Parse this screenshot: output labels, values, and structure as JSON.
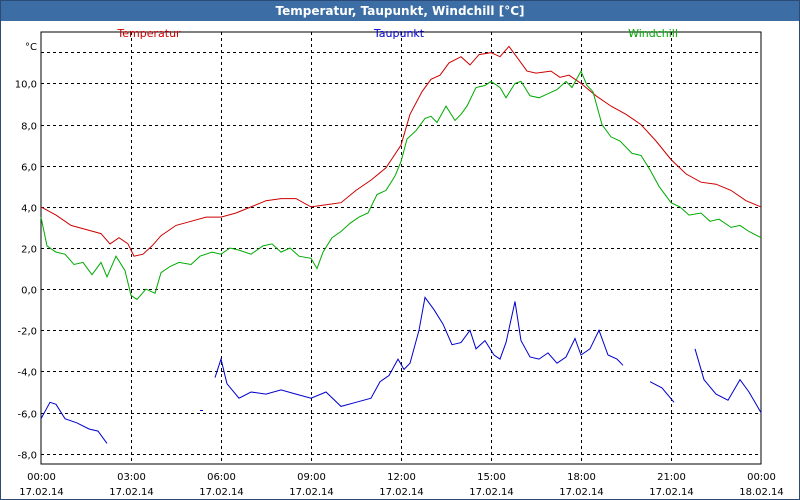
{
  "window": {
    "title": "Temperatur, Taupunkt, Windchill [°C]"
  },
  "chart_data": {
    "type": "line",
    "title": "Temperatur, Taupunkt, Windchill [°C]",
    "ylabel": "°C",
    "xlabel": "",
    "xlim": [
      0,
      24
    ],
    "ylim": [
      -8.5,
      12.5
    ],
    "grid": true,
    "legend_position": "top",
    "x_ticks": [
      {
        "t": 0,
        "time": "00:00",
        "date": "17.02.14"
      },
      {
        "t": 3,
        "time": "03:00",
        "date": "17.02.14"
      },
      {
        "t": 6,
        "time": "06:00",
        "date": "17.02.14"
      },
      {
        "t": 9,
        "time": "09:00",
        "date": "17.02.14"
      },
      {
        "t": 12,
        "time": "12:00",
        "date": "17.02.14"
      },
      {
        "t": 15,
        "time": "15:00",
        "date": "17.02.14"
      },
      {
        "t": 18,
        "time": "18:00",
        "date": "17.02.14"
      },
      {
        "t": 21,
        "time": "21:00",
        "date": "17.02.14"
      },
      {
        "t": 24,
        "time": "00:00",
        "date": "18.02.14"
      }
    ],
    "y_ticks": [
      {
        "v": 10,
        "label": "10,0"
      },
      {
        "v": 8,
        "label": "8,0"
      },
      {
        "v": 6,
        "label": "6,0"
      },
      {
        "v": 4,
        "label": "4,0"
      },
      {
        "v": 2,
        "label": "2,0"
      },
      {
        "v": 0,
        "label": "0,0"
      },
      {
        "v": -2,
        "label": "-2,0"
      },
      {
        "v": -4,
        "label": "-4,0"
      },
      {
        "v": -6,
        "label": "-6,0"
      },
      {
        "v": -8,
        "label": "-8,0"
      }
    ],
    "series": [
      {
        "name": "Temperatur",
        "color": "#cc0000",
        "points": [
          [
            0,
            4.0
          ],
          [
            0.5,
            3.6
          ],
          [
            1,
            3.1
          ],
          [
            1.5,
            2.9
          ],
          [
            2,
            2.7
          ],
          [
            2.3,
            2.2
          ],
          [
            2.6,
            2.5
          ],
          [
            2.9,
            2.2
          ],
          [
            3.1,
            1.6
          ],
          [
            3.4,
            1.7
          ],
          [
            3.7,
            2.1
          ],
          [
            4,
            2.6
          ],
          [
            4.5,
            3.1
          ],
          [
            5,
            3.3
          ],
          [
            5.5,
            3.5
          ],
          [
            6,
            3.5
          ],
          [
            6.5,
            3.7
          ],
          [
            7,
            4.0
          ],
          [
            7.5,
            4.3
          ],
          [
            8,
            4.4
          ],
          [
            8.5,
            4.4
          ],
          [
            9,
            4.0
          ],
          [
            9.5,
            4.1
          ],
          [
            10,
            4.2
          ],
          [
            10.5,
            4.8
          ],
          [
            11,
            5.3
          ],
          [
            11.5,
            5.9
          ],
          [
            12,
            7.0
          ],
          [
            12.3,
            8.5
          ],
          [
            12.7,
            9.6
          ],
          [
            13,
            10.2
          ],
          [
            13.3,
            10.4
          ],
          [
            13.6,
            11.0
          ],
          [
            14,
            11.3
          ],
          [
            14.3,
            10.9
          ],
          [
            14.6,
            11.4
          ],
          [
            15,
            11.5
          ],
          [
            15.3,
            11.3
          ],
          [
            15.6,
            11.8
          ],
          [
            15.9,
            11.2
          ],
          [
            16.2,
            10.6
          ],
          [
            16.5,
            10.5
          ],
          [
            17,
            10.6
          ],
          [
            17.3,
            10.3
          ],
          [
            17.6,
            10.4
          ],
          [
            18,
            10.0
          ],
          [
            18.5,
            9.4
          ],
          [
            19,
            8.9
          ],
          [
            19.5,
            8.5
          ],
          [
            20,
            8.0
          ],
          [
            20.5,
            7.2
          ],
          [
            21,
            6.3
          ],
          [
            21.5,
            5.6
          ],
          [
            22,
            5.2
          ],
          [
            22.5,
            5.1
          ],
          [
            23,
            4.8
          ],
          [
            23.5,
            4.3
          ],
          [
            24,
            4.0
          ]
        ]
      },
      {
        "name": "Taupunkt",
        "color": "#0000cc",
        "segments": [
          [
            [
              0,
              -6.3
            ],
            [
              0.3,
              -5.5
            ],
            [
              0.5,
              -5.6
            ],
            [
              0.8,
              -6.3
            ],
            [
              1.2,
              -6.5
            ],
            [
              1.6,
              -6.8
            ],
            [
              1.9,
              -6.9
            ],
            [
              2.2,
              -7.5
            ]
          ],
          [
            [
              5.3,
              -5.9
            ],
            [
              5.4,
              -5.9
            ]
          ],
          [
            [
              5.8,
              -4.3
            ],
            [
              6.0,
              -3.4
            ],
            [
              6.2,
              -4.6
            ],
            [
              6.6,
              -5.3
            ],
            [
              7,
              -5.0
            ],
            [
              7.5,
              -5.1
            ],
            [
              8,
              -4.9
            ],
            [
              8.5,
              -5.1
            ],
            [
              9,
              -5.3
            ],
            [
              9.5,
              -5.0
            ],
            [
              10,
              -5.7
            ],
            [
              10.5,
              -5.5
            ],
            [
              11,
              -5.3
            ],
            [
              11.3,
              -4.5
            ],
            [
              11.6,
              -4.2
            ],
            [
              11.9,
              -3.4
            ],
            [
              12.1,
              -3.9
            ],
            [
              12.3,
              -3.6
            ],
            [
              12.6,
              -2.0
            ],
            [
              12.8,
              -0.4
            ],
            [
              13.1,
              -1.0
            ],
            [
              13.4,
              -1.7
            ],
            [
              13.7,
              -2.7
            ],
            [
              14.0,
              -2.6
            ],
            [
              14.3,
              -2.0
            ],
            [
              14.5,
              -2.9
            ],
            [
              14.8,
              -2.5
            ],
            [
              15.1,
              -3.2
            ],
            [
              15.3,
              -3.4
            ],
            [
              15.5,
              -2.6
            ],
            [
              15.8,
              -0.6
            ],
            [
              16.0,
              -2.5
            ],
            [
              16.3,
              -3.3
            ],
            [
              16.6,
              -3.4
            ],
            [
              16.9,
              -3.1
            ],
            [
              17.2,
              -3.6
            ],
            [
              17.5,
              -3.3
            ],
            [
              17.8,
              -2.4
            ],
            [
              18.0,
              -3.2
            ],
            [
              18.3,
              -2.9
            ],
            [
              18.6,
              -2.0
            ],
            [
              18.9,
              -3.2
            ],
            [
              19.2,
              -3.4
            ],
            [
              19.4,
              -3.7
            ]
          ],
          [
            [
              20.3,
              -4.5
            ],
            [
              20.7,
              -4.8
            ],
            [
              21.1,
              -5.5
            ]
          ],
          [
            [
              21.8,
              -2.9
            ],
            [
              22.1,
              -4.4
            ],
            [
              22.5,
              -5.1
            ],
            [
              22.9,
              -5.4
            ],
            [
              23.3,
              -4.4
            ],
            [
              23.6,
              -5.0
            ],
            [
              24,
              -6.0
            ]
          ]
        ]
      },
      {
        "name": "Windchill",
        "color": "#00aa00",
        "points": [
          [
            0,
            3.5
          ],
          [
            0.2,
            2.1
          ],
          [
            0.5,
            1.8
          ],
          [
            0.8,
            1.7
          ],
          [
            1.1,
            1.2
          ],
          [
            1.4,
            1.3
          ],
          [
            1.7,
            0.7
          ],
          [
            2.0,
            1.3
          ],
          [
            2.2,
            0.6
          ],
          [
            2.5,
            1.6
          ],
          [
            2.8,
            0.9
          ],
          [
            3.0,
            -0.3
          ],
          [
            3.2,
            -0.5
          ],
          [
            3.5,
            0.0
          ],
          [
            3.8,
            -0.2
          ],
          [
            4.0,
            0.8
          ],
          [
            4.3,
            1.1
          ],
          [
            4.6,
            1.3
          ],
          [
            5.0,
            1.2
          ],
          [
            5.3,
            1.6
          ],
          [
            5.7,
            1.8
          ],
          [
            6.0,
            1.7
          ],
          [
            6.3,
            2.0
          ],
          [
            6.6,
            1.9
          ],
          [
            7.0,
            1.7
          ],
          [
            7.4,
            2.1
          ],
          [
            7.7,
            2.2
          ],
          [
            8.0,
            1.8
          ],
          [
            8.3,
            2.0
          ],
          [
            8.6,
            1.6
          ],
          [
            9.0,
            1.5
          ],
          [
            9.2,
            1.0
          ],
          [
            9.4,
            1.8
          ],
          [
            9.7,
            2.5
          ],
          [
            10.0,
            2.8
          ],
          [
            10.3,
            3.2
          ],
          [
            10.6,
            3.5
          ],
          [
            10.9,
            3.7
          ],
          [
            11.2,
            4.6
          ],
          [
            11.5,
            4.8
          ],
          [
            11.8,
            5.5
          ],
          [
            12.0,
            6.2
          ],
          [
            12.2,
            7.3
          ],
          [
            12.5,
            7.7
          ],
          [
            12.8,
            8.3
          ],
          [
            13.0,
            8.4
          ],
          [
            13.2,
            8.1
          ],
          [
            13.5,
            8.9
          ],
          [
            13.8,
            8.2
          ],
          [
            14.0,
            8.5
          ],
          [
            14.2,
            8.9
          ],
          [
            14.5,
            9.8
          ],
          [
            14.8,
            9.9
          ],
          [
            15.0,
            10.1
          ],
          [
            15.3,
            9.8
          ],
          [
            15.5,
            9.3
          ],
          [
            15.8,
            10.0
          ],
          [
            16.0,
            10.1
          ],
          [
            16.3,
            9.4
          ],
          [
            16.6,
            9.3
          ],
          [
            16.9,
            9.5
          ],
          [
            17.2,
            9.7
          ],
          [
            17.5,
            10.1
          ],
          [
            17.7,
            9.8
          ],
          [
            18.0,
            10.6
          ],
          [
            18.2,
            9.9
          ],
          [
            18.4,
            9.6
          ],
          [
            18.7,
            8.0
          ],
          [
            19.0,
            7.4
          ],
          [
            19.3,
            7.2
          ],
          [
            19.7,
            6.6
          ],
          [
            20.0,
            6.5
          ],
          [
            20.3,
            5.8
          ],
          [
            20.6,
            5.0
          ],
          [
            21.0,
            4.2
          ],
          [
            21.3,
            4.0
          ],
          [
            21.6,
            3.6
          ],
          [
            22.0,
            3.7
          ],
          [
            22.3,
            3.3
          ],
          [
            22.6,
            3.4
          ],
          [
            23.0,
            3.0
          ],
          [
            23.3,
            3.1
          ],
          [
            23.6,
            2.8
          ],
          [
            24,
            2.5
          ]
        ]
      }
    ]
  }
}
